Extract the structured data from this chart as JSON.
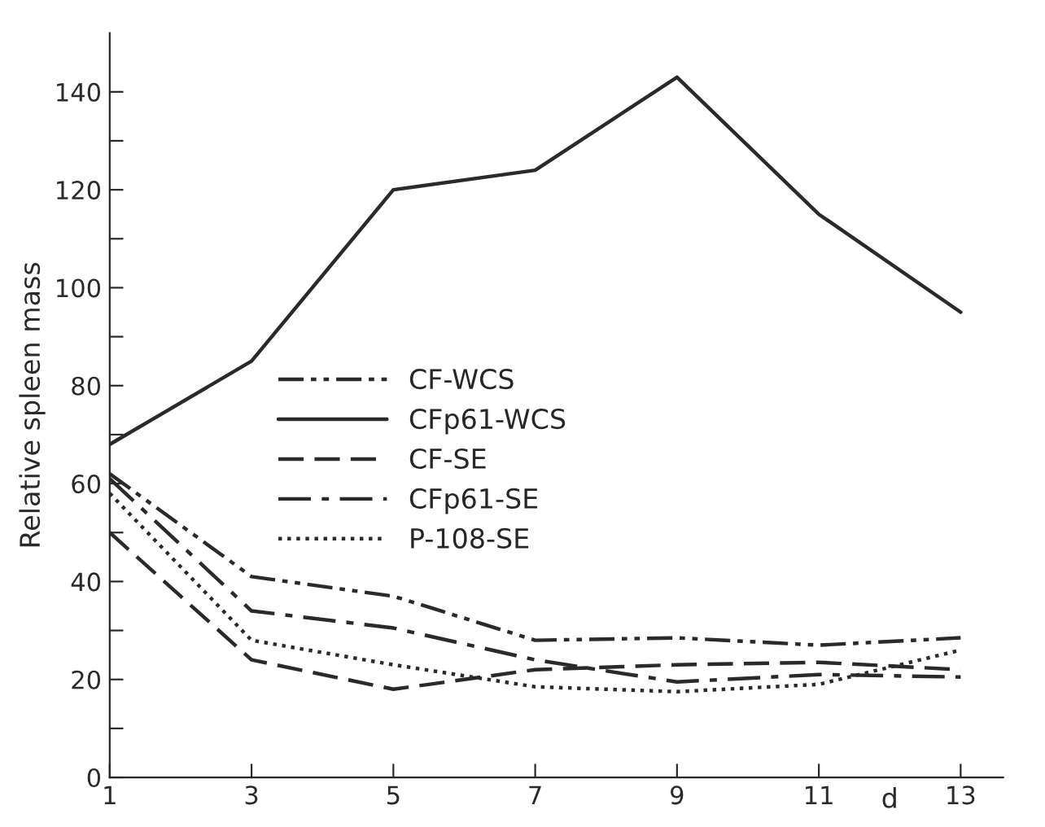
{
  "chart_data": {
    "type": "line",
    "ylabel": "Relative spleen mass",
    "xlabel": "d",
    "x": [
      1,
      3,
      5,
      7,
      9,
      11,
      13
    ],
    "xlim": [
      1,
      13.6
    ],
    "xticks": [
      1,
      3,
      5,
      7,
      9,
      11,
      13
    ],
    "ylim": [
      0,
      152
    ],
    "yticks": [
      0,
      {
        "value": 10,
        "label": null
      },
      20,
      {
        "value": 30,
        "label": null
      },
      40,
      {
        "value": 50,
        "label": null
      },
      60,
      {
        "value": 70,
        "label": null
      },
      80,
      {
        "value": 90,
        "label": null
      },
      100,
      {
        "value": 110,
        "label": null
      },
      120,
      {
        "value": 130,
        "label": null
      },
      140
    ],
    "grid": false,
    "legend": "center",
    "marker": "none",
    "series": [
      {
        "name": "CF-WCS",
        "color": "#2a2a2a",
        "line_style": "dashdotdot",
        "values": [
          62,
          41,
          37,
          28,
          28.5,
          27,
          28.5
        ]
      },
      {
        "name": "CFp61-WCS",
        "color": "#2a2a2a",
        "line_style": "solid",
        "values": [
          68,
          85,
          120,
          124,
          143,
          115,
          95
        ]
      },
      {
        "name": "CF-SE",
        "color": "#2a2a2a",
        "line_style": "dashed",
        "values": [
          50,
          24,
          18,
          22,
          23,
          23.5,
          22
        ]
      },
      {
        "name": "CFp61-SE",
        "color": "#2a2a2a",
        "line_style": "dashdot",
        "values": [
          61,
          34,
          30.5,
          24,
          19.5,
          21,
          20.5
        ]
      },
      {
        "name": "P-108-SE",
        "color": "#2a2a2a",
        "line_style": "dotted",
        "values": [
          58,
          28,
          23,
          18.5,
          17.5,
          19,
          26
        ]
      }
    ]
  }
}
